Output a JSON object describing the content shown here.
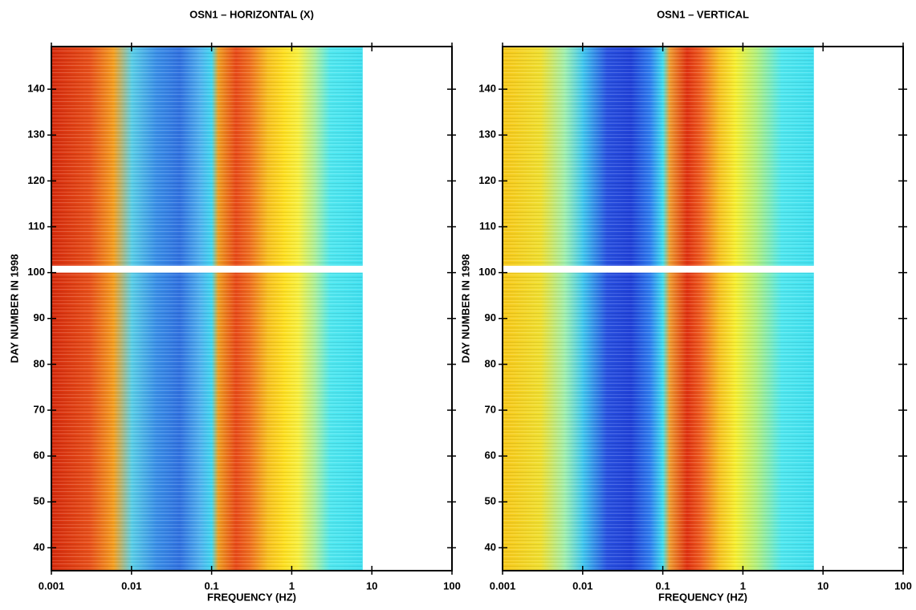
{
  "chart_data": [
    {
      "type": "heatmap",
      "title": "OSN1 – HORIZONTAL (X)",
      "xlabel": "FREQUENCY (HZ)",
      "ylabel": "DAY NUMBER IN 1998",
      "xscale": "log",
      "xlim": [
        0.001,
        100
      ],
      "xticks": [
        0.001,
        0.01,
        0.1,
        1,
        10,
        100
      ],
      "ylim": [
        35,
        149.3
      ],
      "yticks": [
        40,
        50,
        60,
        70,
        80,
        90,
        100,
        110,
        120,
        130,
        140
      ],
      "blocks": [
        [
          35,
          100
        ],
        [
          101.5,
          149.3
        ]
      ],
      "profile": {
        "x": [
          0.001,
          0.003,
          0.006,
          0.01,
          0.02,
          0.04,
          0.07,
          0.1,
          0.12,
          0.2,
          0.3,
          0.5,
          0.8,
          1.2,
          2,
          3,
          7.6
        ],
        "colors": [
          "#d62a0c",
          "#e8501a",
          "#f5a020",
          "#5ad0e8",
          "#3a90e8",
          "#3070e0",
          "#50b0f0",
          "#40d8f0",
          "#f0a020",
          "#e84818",
          "#f07020",
          "#f8c020",
          "#ffe020",
          "#f8f040",
          "#a8f0a0",
          "#50e8f0",
          "#40e0f0"
        ]
      }
    },
    {
      "type": "heatmap",
      "title": "OSN1 – VERTICAL",
      "xlabel": "FREQUENCY (HZ)",
      "ylabel": "DAY NUMBER IN 1998",
      "xscale": "log",
      "xlim": [
        0.001,
        100
      ],
      "xticks": [
        0.001,
        0.01,
        0.1,
        1,
        10,
        100
      ],
      "ylim": [
        35,
        149.3
      ],
      "yticks": [
        40,
        50,
        60,
        70,
        80,
        90,
        100,
        110,
        120,
        130,
        140
      ],
      "blocks": [
        [
          35,
          100
        ],
        [
          101.5,
          149.3
        ]
      ],
      "profile": {
        "x": [
          0.001,
          0.003,
          0.006,
          0.01,
          0.02,
          0.04,
          0.07,
          0.1,
          0.12,
          0.2,
          0.3,
          0.5,
          0.8,
          1.5,
          3,
          7.6
        ],
        "colors": [
          "#f8c818",
          "#f0e030",
          "#a0f0b0",
          "#40c8f0",
          "#2850e0",
          "#2040d8",
          "#3080f0",
          "#40e0f0",
          "#f0a030",
          "#e03010",
          "#f06020",
          "#f8c020",
          "#f8f030",
          "#b0f080",
          "#50e8f0",
          "#40e0f0"
        ]
      }
    }
  ]
}
